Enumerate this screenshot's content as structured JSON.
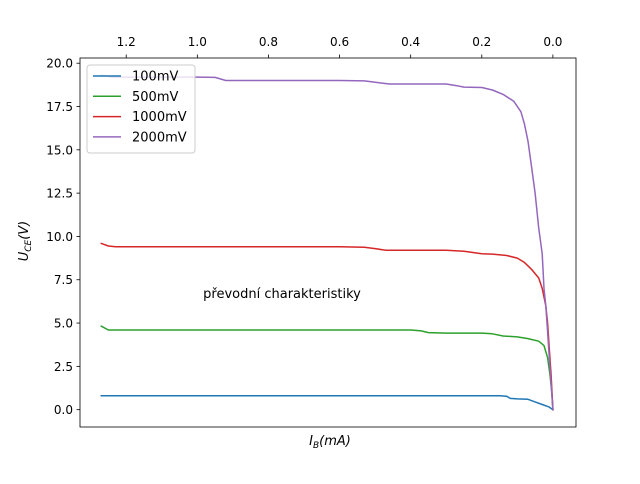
{
  "chart_data": {
    "type": "line",
    "xlabel_main": "I",
    "xlabel_sub": "B",
    "xlabel_unit": "(mA)",
    "ylabel_main": "U",
    "ylabel_sub": "CE",
    "ylabel_unit": "(V)",
    "annotation": "převodní charakteristiky",
    "x_inverted": true,
    "x_axis_position": "top",
    "xlim": [
      1.33,
      -0.065
    ],
    "ylim": [
      -1.0,
      20.3
    ],
    "x_ticks": [
      1.2,
      1.0,
      0.8,
      0.6,
      0.4,
      0.2,
      0.0
    ],
    "x_tick_labels": [
      "1.2",
      "1.0",
      "0.8",
      "0.6",
      "0.4",
      "0.2",
      "0.0"
    ],
    "y_ticks": [
      0.0,
      2.5,
      5.0,
      7.5,
      10.0,
      12.5,
      15.0,
      17.5,
      20.0
    ],
    "y_tick_labels": [
      "0.0",
      "2.5",
      "5.0",
      "7.5",
      "10.0",
      "12.5",
      "15.0",
      "17.5",
      "20.0"
    ],
    "grid": false,
    "legend_position": "top-left",
    "series": [
      {
        "name": "100mV",
        "color": "#1f77b4",
        "points": [
          [
            1.27,
            0.8
          ],
          [
            1.25,
            0.8
          ],
          [
            0.8,
            0.8
          ],
          [
            0.4,
            0.8
          ],
          [
            0.15,
            0.8
          ],
          [
            0.13,
            0.78
          ],
          [
            0.12,
            0.65
          ],
          [
            0.1,
            0.62
          ],
          [
            0.07,
            0.6
          ],
          [
            0.05,
            0.45
          ],
          [
            0.03,
            0.3
          ],
          [
            0.01,
            0.15
          ],
          [
            0.0,
            0.0
          ]
        ]
      },
      {
        "name": "500mV",
        "color": "#2ca02c",
        "points": [
          [
            1.27,
            4.82
          ],
          [
            1.25,
            4.6
          ],
          [
            1.0,
            4.6
          ],
          [
            0.6,
            4.6
          ],
          [
            0.4,
            4.6
          ],
          [
            0.37,
            4.55
          ],
          [
            0.35,
            4.45
          ],
          [
            0.3,
            4.42
          ],
          [
            0.2,
            4.42
          ],
          [
            0.17,
            4.38
          ],
          [
            0.14,
            4.25
          ],
          [
            0.1,
            4.2
          ],
          [
            0.07,
            4.1
          ],
          [
            0.04,
            3.95
          ],
          [
            0.025,
            3.7
          ],
          [
            0.015,
            3.0
          ],
          [
            0.008,
            2.0
          ],
          [
            0.003,
            1.0
          ],
          [
            0.0,
            0.0
          ]
        ]
      },
      {
        "name": "1000mV",
        "color": "#d62728",
        "points": [
          [
            1.27,
            9.6
          ],
          [
            1.25,
            9.45
          ],
          [
            1.23,
            9.4
          ],
          [
            1.0,
            9.4
          ],
          [
            0.8,
            9.4
          ],
          [
            0.6,
            9.4
          ],
          [
            0.53,
            9.38
          ],
          [
            0.5,
            9.3
          ],
          [
            0.47,
            9.2
          ],
          [
            0.4,
            9.2
          ],
          [
            0.3,
            9.2
          ],
          [
            0.25,
            9.15
          ],
          [
            0.2,
            9.0
          ],
          [
            0.17,
            8.98
          ],
          [
            0.13,
            8.9
          ],
          [
            0.1,
            8.75
          ],
          [
            0.08,
            8.5
          ],
          [
            0.06,
            8.1
          ],
          [
            0.04,
            7.6
          ],
          [
            0.03,
            7.0
          ],
          [
            0.02,
            6.0
          ],
          [
            0.015,
            5.0
          ],
          [
            0.01,
            3.5
          ],
          [
            0.005,
            2.0
          ],
          [
            0.0,
            0.0
          ]
        ]
      },
      {
        "name": "2000mV",
        "color": "#9467bd",
        "points": [
          [
            1.27,
            19.3
          ],
          [
            1.24,
            19.2
          ],
          [
            1.0,
            19.2
          ],
          [
            0.95,
            19.18
          ],
          [
            0.92,
            19.0
          ],
          [
            0.8,
            19.0
          ],
          [
            0.6,
            19.0
          ],
          [
            0.53,
            18.98
          ],
          [
            0.5,
            18.9
          ],
          [
            0.46,
            18.8
          ],
          [
            0.4,
            18.8
          ],
          [
            0.3,
            18.8
          ],
          [
            0.27,
            18.7
          ],
          [
            0.25,
            18.62
          ],
          [
            0.2,
            18.6
          ],
          [
            0.17,
            18.45
          ],
          [
            0.14,
            18.2
          ],
          [
            0.11,
            17.8
          ],
          [
            0.09,
            17.2
          ],
          [
            0.08,
            16.5
          ],
          [
            0.07,
            15.5
          ],
          [
            0.06,
            14.0
          ],
          [
            0.05,
            12.5
          ],
          [
            0.04,
            10.5
          ],
          [
            0.03,
            9.0
          ],
          [
            0.025,
            7.0
          ],
          [
            0.02,
            6.0
          ],
          [
            0.015,
            4.5
          ],
          [
            0.01,
            3.0
          ],
          [
            0.005,
            1.5
          ],
          [
            0.0,
            0.0
          ]
        ]
      }
    ]
  }
}
